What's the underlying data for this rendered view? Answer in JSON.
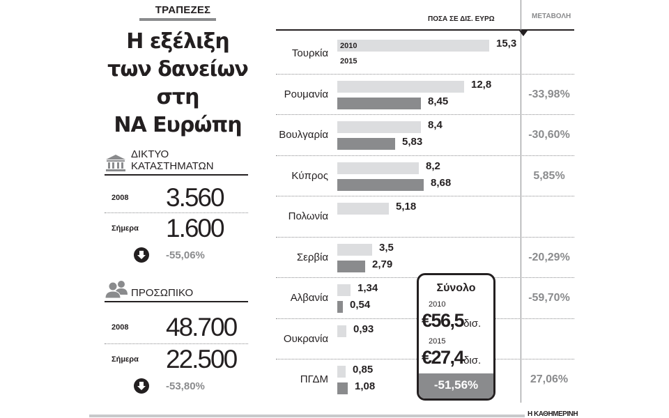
{
  "kicker": "ΤΡΑΠΕΖΕΣ",
  "title_lines": [
    "Η εξέλιξη",
    "των δανείων",
    "στη",
    "ΝΑ Ευρώπη"
  ],
  "branches": {
    "icon": "bank-building-icon",
    "label": "ΔΙΚΤΥΟ ΚΑΤΑΣΤΗΜΑΤΩΝ",
    "rows": [
      {
        "label": "2008",
        "value": "3.560"
      },
      {
        "label": "Σήμερα",
        "value": "1.600"
      }
    ],
    "change_icon": "arrow-down-circle-icon",
    "change": "-55,06%"
  },
  "staff": {
    "icon": "people-icon",
    "label": "ΠΡΟΣΩΠΙΚΟ",
    "rows": [
      {
        "label": "2008",
        "value": "48.700"
      },
      {
        "label": "Σήμερα",
        "value": "22.500"
      }
    ],
    "change_icon": "arrow-down-circle-icon",
    "change": "-53,80%"
  },
  "chart_header": {
    "amounts_label": "ΠΟΣΑ ΣΕ ΔΙΣ. ΕΥΡΩ",
    "change_label": "ΜΕΤΑΒΟΛΗ"
  },
  "legend": {
    "y2010": "2010",
    "y2015": "2015"
  },
  "total": {
    "title": "Σύνολο",
    "y2010_label": "2010",
    "y2010_value": "€56,5",
    "y2015_label": "2015",
    "y2015_value": "€27,4",
    "unit": "δισ.",
    "change": "-51,56%"
  },
  "credit": "Η ΚΑΘΗΜΕΡΙΝΗ",
  "colors": {
    "bar_2010": "#dcdddf",
    "bar_2015": "#8a8b8d",
    "text": "#231f20",
    "change_text": "#8a8b8d"
  },
  "chart_data": {
    "type": "bar",
    "orientation": "horizontal",
    "title": "Η εξέλιξη των δανείων στη ΝΑ Ευρώπη",
    "xlabel": "ΠΟΣΑ ΣΕ ΔΙΣ. ΕΥΡΩ",
    "ylabel": "",
    "categories": [
      "Τουρκία",
      "Ρουμανία",
      "Βουλγαρία",
      "Κύπρος",
      "Πολωνία",
      "Σερβία",
      "Αλβανία",
      "Ουκρανία",
      "ΠΓΔΜ"
    ],
    "series": [
      {
        "name": "2010",
        "values": [
          15.3,
          12.8,
          8.4,
          8.2,
          5.18,
          3.5,
          1.34,
          0.93,
          0.85
        ],
        "labels": [
          "15,3",
          "12,8",
          "8,4",
          "8,2",
          "5,18",
          "3,5",
          "1,34",
          "0,93",
          "0,85"
        ]
      },
      {
        "name": "2015",
        "values": [
          null,
          8.45,
          5.83,
          8.68,
          null,
          2.79,
          0.54,
          null,
          1.08
        ],
        "labels": [
          "",
          "8,45",
          "5,83",
          "8,68",
          "",
          "2,79",
          "0,54",
          "",
          "1,08"
        ]
      }
    ],
    "change": [
      "",
      "-33,98%",
      "-30,60%",
      "5,85%",
      "",
      "-20,29%",
      "-59,70%",
      "",
      "27,06%"
    ],
    "xlim": [
      0,
      16
    ],
    "grid": false,
    "legend_position": "inline-first-bar",
    "annotations": [
      "Σύνολο 2010 €56,5 δισ.",
      "2015 €27,4 δισ.",
      "-51,56%"
    ]
  }
}
